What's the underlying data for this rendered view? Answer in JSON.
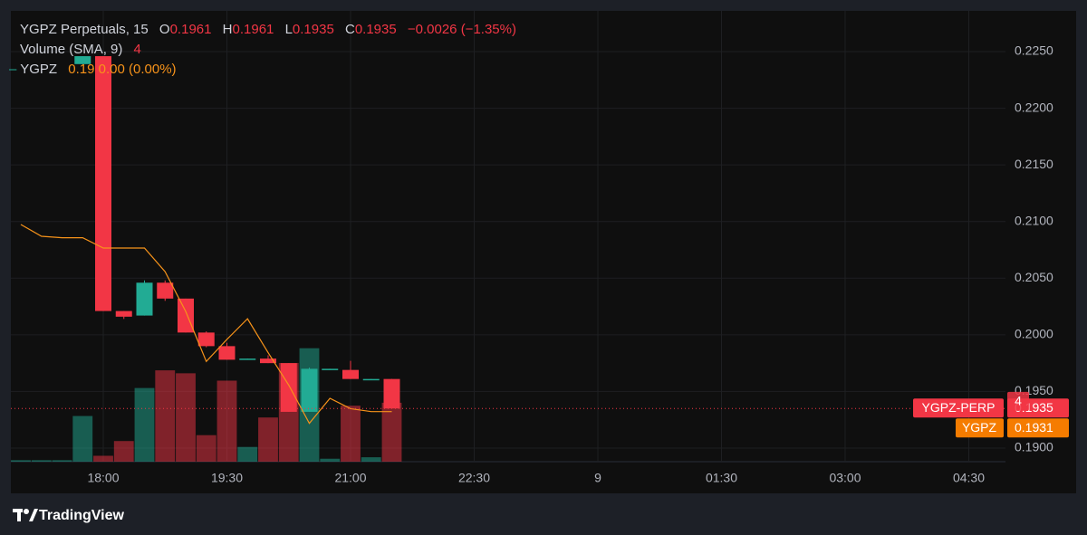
{
  "chart_data": {
    "type": "candlestick",
    "symbol": "YGPZ Perpetuals, 15",
    "ohlc_labels": [
      "O",
      "H",
      "L",
      "C"
    ],
    "change": "−0.0026",
    "change_pct": "(−1.35%)",
    "categories": [
      null,
      null,
      null,
      null,
      "18:00",
      null,
      null,
      null,
      null,
      null,
      "19:30",
      null,
      null,
      null,
      null,
      null,
      "21:00",
      null,
      null,
      null,
      null,
      null,
      "22:30",
      null,
      null,
      null,
      null,
      null,
      "9",
      null,
      null,
      null,
      null,
      null,
      "01:30",
      null,
      null,
      null,
      null,
      null,
      "03:00",
      null,
      null,
      null,
      null,
      null,
      "04:30",
      null,
      null
    ],
    "up_color": "#22ab94",
    "down_color": "#f23645",
    "series": [
      {
        "name": "YGPZ-PERP",
        "open": [
          null,
          null,
          null,
          0.2239,
          0.2246,
          0.2021,
          0.2017,
          0.2046,
          0.2032,
          0.2002,
          0.199,
          0.1978,
          0.1979,
          0.1975,
          0.1932,
          0.1969,
          0.1969,
          0.196,
          0.1961,
          null,
          null,
          null,
          null,
          null,
          null,
          null,
          null,
          null,
          null,
          null,
          null,
          null,
          null,
          null,
          null,
          null,
          null,
          null,
          null,
          null,
          null,
          null,
          null,
          null,
          null,
          null,
          null,
          null,
          null
        ],
        "high": [
          null,
          null,
          null,
          0.2246,
          0.2246,
          0.2021,
          0.2048,
          0.2048,
          0.2032,
          0.2003,
          0.1993,
          0.1979,
          0.1982,
          0.1975,
          0.1971,
          0.197,
          0.1977,
          0.1961,
          0.1961,
          null,
          null,
          null,
          null,
          null,
          null,
          null,
          null,
          null,
          null,
          null,
          null,
          null,
          null,
          null,
          null,
          null,
          null,
          null,
          null,
          null,
          null,
          null,
          null,
          null,
          null,
          null,
          null,
          null,
          null
        ],
        "low": [
          null,
          null,
          null,
          0.2239,
          0.2021,
          0.2014,
          0.2017,
          0.203,
          0.2002,
          0.1989,
          0.1978,
          0.1978,
          0.1975,
          0.1932,
          0.1932,
          0.1969,
          0.1961,
          0.196,
          0.1935,
          null,
          null,
          null,
          null,
          null,
          null,
          null,
          null,
          null,
          null,
          null,
          null,
          null,
          null,
          null,
          null,
          null,
          null,
          null,
          null,
          null,
          null,
          null,
          null,
          null,
          null,
          null,
          null,
          null,
          null
        ],
        "close": [
          null,
          null,
          null,
          0.2246,
          0.2021,
          0.2016,
          0.2046,
          0.2032,
          0.2002,
          0.199,
          0.1978,
          0.1979,
          0.1975,
          0.1932,
          0.197,
          0.197,
          0.1961,
          0.1961,
          0.1935,
          null,
          null,
          null,
          null,
          null,
          null,
          null,
          null,
          null,
          null,
          null,
          null,
          null,
          null,
          null,
          null,
          null,
          null,
          null,
          null,
          null,
          null,
          null,
          null,
          null,
          null,
          null,
          null,
          null,
          null
        ]
      }
    ],
    "volume": {
      "name": "Volume (SMA, 9)",
      "values": [
        0.1,
        0.1,
        0.1,
        3.1,
        0.4,
        1.4,
        5.0,
        6.2,
        6.0,
        1.8,
        5.5,
        1.0,
        3.0,
        6.7,
        7.7,
        0.2,
        3.8,
        0.3,
        4,
        null,
        null,
        null,
        null,
        null,
        null,
        null,
        null,
        null,
        null,
        null,
        null,
        null,
        null,
        null,
        null,
        null,
        null,
        null,
        null,
        null,
        null,
        null,
        null,
        null,
        null,
        null,
        null,
        null,
        null
      ],
      "sma": [
        16.1,
        15.3,
        15.2,
        15.2,
        14.5,
        14.5,
        14.5,
        12.9,
        10.2,
        6.8,
        8.3,
        9.7,
        7.4,
        5.2,
        2.6,
        4.3,
        3.6,
        3.4,
        3.4,
        null,
        null,
        null,
        null,
        null,
        null,
        null,
        null,
        null,
        null,
        null,
        null,
        null,
        null,
        null,
        null,
        null,
        null,
        null,
        null,
        null,
        null,
        null,
        null,
        null,
        null,
        null,
        null,
        null,
        null
      ],
      "sma_color": "#f7931a",
      "vlim": [
        0,
        30.6
      ]
    },
    "compare": {
      "name": "YGPZ",
      "legend_value": "0.19",
      "change": "0.00 (0.00%)",
      "price": 0.1931,
      "color": "#f57c00"
    },
    "ylim": [
      0.1888,
      0.2286
    ],
    "yticks": [
      {
        "value": 0.19,
        "label": "0.1900"
      },
      {
        "value": 0.195,
        "label": "0.1950"
      },
      {
        "value": 0.2,
        "label": "0.2000"
      },
      {
        "value": 0.205,
        "label": "0.2050"
      },
      {
        "value": 0.21,
        "label": "0.2100"
      },
      {
        "value": 0.215,
        "label": "0.2150"
      },
      {
        "value": 0.22,
        "label": "0.2200"
      },
      {
        "value": 0.225,
        "label": "0.2250"
      }
    ],
    "grid": true
  },
  "footer": {
    "brand": "TradingView"
  }
}
